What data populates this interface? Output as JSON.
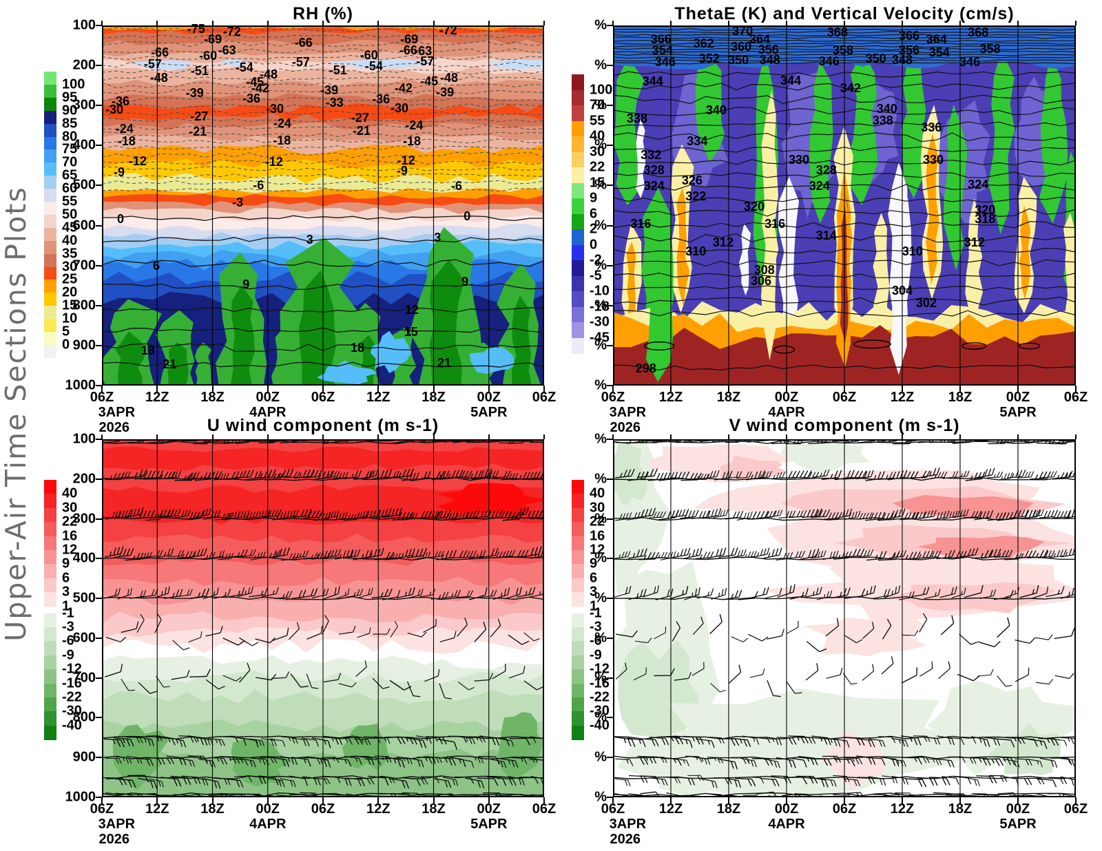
{
  "page": {
    "side_title": "Upper-Air Time Sections Plots"
  },
  "chart_data": [
    {
      "id": "rh",
      "type": "filled_contour_time_height_section",
      "title": "RH (%)",
      "x_tick_labels": [
        "06Z",
        "12Z",
        "18Z",
        "00Z",
        "06Z",
        "12Z",
        "18Z",
        "00Z",
        "06Z"
      ],
      "x_date_labels": [
        {
          "tick_index": 0,
          "lines": [
            "3APR",
            "2026"
          ]
        },
        {
          "tick_index": 3,
          "lines": [
            "4APR"
          ]
        },
        {
          "tick_index": 7,
          "lines": [
            "5APR"
          ]
        }
      ],
      "y_tick_labels": [
        "100",
        "200",
        "300",
        "400",
        "500",
        "600",
        "700",
        "800",
        "900",
        "1000"
      ],
      "colorbar": {
        "labels": [
          "100",
          "95",
          "90",
          "85",
          "80",
          "75",
          "70",
          "65",
          "60",
          "55",
          "50",
          "45",
          "40",
          "35",
          "30",
          "25",
          "20",
          "15",
          "10",
          "5",
          "0"
        ],
        "colors": [
          "#73E673",
          "#3CBE3C",
          "#0A870A",
          "#16207D",
          "#2050C3",
          "#2878E8",
          "#41A0F0",
          "#55BEFA",
          "#A5CDF2",
          "#D7DCF0",
          "#FBEBE9",
          "#F5D5CB",
          "#ECB49E",
          "#E09378",
          "#D47355",
          "#F74B14",
          "#FFA000",
          "#FFC800",
          "#EBEB96",
          "#FFE94C",
          "#FAFAC3",
          "#F2F2F2"
        ]
      },
      "contour_labels": [
        [
          "-75",
          21.3,
          1.0
        ],
        [
          "-72",
          29.4,
          1.7
        ],
        [
          "-72",
          78.3,
          1.4
        ],
        [
          "-69",
          25.1,
          3.9
        ],
        [
          "-69",
          69.5,
          3.9
        ],
        [
          "-66",
          13.1,
          7.5
        ],
        [
          "-66",
          45.6,
          4.8
        ],
        [
          "-66",
          69.3,
          6.8
        ],
        [
          "-63",
          28.3,
          6.9
        ],
        [
          "-63",
          72.6,
          7.1
        ],
        [
          "-60",
          24.0,
          8.5
        ],
        [
          "-60",
          60.4,
          8.3
        ],
        [
          "-57",
          11.5,
          10.8
        ],
        [
          "-57",
          45.0,
          10.2
        ],
        [
          "-57",
          73.1,
          10.0
        ],
        [
          "-54",
          32.2,
          11.6
        ],
        [
          "-54",
          61.5,
          11.2
        ],
        [
          "-51",
          22.1,
          12.7
        ],
        [
          "-51",
          53.4,
          12.5
        ],
        [
          "-48",
          12.9,
          14.5
        ],
        [
          "-48",
          37.7,
          13.5
        ],
        [
          "-48",
          78.5,
          14.5
        ],
        [
          "-45",
          34.6,
          15.6
        ],
        [
          "-45",
          74.0,
          15.4
        ],
        [
          "-42",
          35.8,
          17.4
        ],
        [
          "-42",
          68.2,
          17.4
        ],
        [
          "-39",
          21.0,
          18.7
        ],
        [
          "-39",
          51.4,
          18.0
        ],
        [
          "-39",
          77.6,
          18.5
        ],
        [
          "-36",
          4.2,
          21.0
        ],
        [
          "-36",
          33.8,
          20.3
        ],
        [
          "-36",
          63.1,
          20.5
        ],
        [
          "-33",
          52.6,
          21.4
        ],
        [
          "-30",
          2.8,
          23.4
        ],
        [
          "-30",
          39.1,
          23.2
        ],
        [
          "-30",
          67.3,
          23.0
        ],
        [
          "-27",
          22.0,
          25.3
        ],
        [
          "-27",
          58.4,
          25.7
        ],
        [
          "-24",
          5.1,
          28.6
        ],
        [
          "-24",
          40.8,
          27.2
        ],
        [
          "-24",
          70.6,
          27.8
        ],
        [
          "-21",
          21.7,
          29.5
        ],
        [
          "-21",
          58.7,
          29.3
        ],
        [
          "-18",
          5.6,
          32.2
        ],
        [
          "-18",
          40.7,
          31.9
        ],
        [
          "-18",
          70.1,
          32.2
        ],
        [
          "-12",
          8.1,
          37.6
        ],
        [
          "-12",
          38.9,
          37.8
        ],
        [
          "-12",
          68.8,
          37.5
        ],
        [
          "-9",
          3.9,
          40.7
        ],
        [
          "-9",
          67.9,
          40.3
        ],
        [
          "-6",
          35.4,
          44.4
        ],
        [
          "-6",
          80.2,
          44.6
        ],
        [
          "-3",
          30.7,
          49.2
        ],
        [
          "0",
          4.2,
          53.7
        ],
        [
          "0",
          82.6,
          52.9
        ],
        [
          "3",
          47.0,
          59.5
        ],
        [
          "3",
          75.9,
          58.9
        ],
        [
          "6",
          12.3,
          66.8
        ],
        [
          "9",
          32.6,
          71.8
        ],
        [
          "9",
          82.1,
          71.2
        ],
        [
          "12",
          70.1,
          79.0
        ],
        [
          "15",
          69.9,
          85.1
        ],
        [
          "18",
          10.4,
          90.3
        ],
        [
          "18",
          57.8,
          89.4
        ],
        [
          "21",
          15.3,
          94.0
        ],
        [
          "21",
          77.4,
          93.6
        ]
      ]
    },
    {
      "id": "thetae",
      "type": "filled_contour_time_height_section",
      "title": "ThetaE (K) and Vertical Velocity (cm/s)",
      "x_tick_labels": [
        "06Z",
        "12Z",
        "18Z",
        "00Z",
        "06Z",
        "12Z",
        "18Z",
        "00Z",
        "06Z"
      ],
      "x_date_labels": [
        {
          "tick_index": 0,
          "lines": [
            "3APR",
            "2026"
          ]
        },
        {
          "tick_index": 3,
          "lines": [
            "4APR"
          ]
        },
        {
          "tick_index": 7,
          "lines": [
            "5APR"
          ]
        }
      ],
      "y_tick_labels": [
        "%",
        "%",
        "%",
        "%",
        "%",
        "%",
        "%",
        "%",
        "%",
        "%"
      ],
      "colorbar": {
        "labels": [
          "100",
          "70",
          "55",
          "40",
          "30",
          "22",
          "15",
          "9",
          "6",
          "2",
          "0",
          "-2",
          "-5",
          "-10",
          "-18",
          "-30",
          "-45"
        ],
        "colors": [
          "#8C1A1A",
          "#A52D2D",
          "#C04040",
          "#FF9E00",
          "#FFB432",
          "#F8D060",
          "#FAF0A5",
          "#7DE87D",
          "#3CD23C",
          "#14A614",
          "#1E64D2",
          "#2830F0",
          "#231999",
          "#3C32AD",
          "#554BC3",
          "#7A70D7",
          "#9C93E3",
          "#ECECF8"
        ]
      },
      "contour_labels": [
        [
          "366",
          10.4,
          3.8
        ],
        [
          "370",
          28.0,
          1.5
        ],
        [
          "364",
          31.7,
          3.8
        ],
        [
          "368",
          48.5,
          2.0
        ],
        [
          "366",
          64.0,
          2.9
        ],
        [
          "364",
          69.9,
          3.8
        ],
        [
          "368",
          78.9,
          2.0
        ],
        [
          "354",
          10.7,
          6.9
        ],
        [
          "362",
          19.6,
          5.0
        ],
        [
          "360",
          27.7,
          5.9
        ],
        [
          "356",
          33.6,
          6.7
        ],
        [
          "358",
          49.7,
          6.9
        ],
        [
          "356",
          64.0,
          6.9
        ],
        [
          "354",
          70.5,
          7.5
        ],
        [
          "358",
          81.5,
          6.5
        ],
        [
          "346",
          11.3,
          10.1
        ],
        [
          "352",
          20.8,
          9.2
        ],
        [
          "350",
          27.1,
          9.6
        ],
        [
          "348",
          33.9,
          9.6
        ],
        [
          "346",
          46.7,
          9.9
        ],
        [
          "350",
          56.8,
          9.2
        ],
        [
          "348",
          62.5,
          9.6
        ],
        [
          "346",
          77.1,
          10.1
        ],
        [
          "344",
          8.6,
          15.5
        ],
        [
          "344",
          38.4,
          15.3
        ],
        [
          "342",
          51.3,
          17.4
        ],
        [
          "340",
          22.3,
          23.5
        ],
        [
          "340",
          59.2,
          23.1
        ],
        [
          "338",
          5.2,
          25.8
        ],
        [
          "338",
          58.3,
          26.4
        ],
        [
          "336",
          68.8,
          28.3
        ],
        [
          "334",
          18.2,
          32.1
        ],
        [
          "332",
          8.2,
          35.9
        ],
        [
          "330",
          40.2,
          37.3
        ],
        [
          "330",
          69.2,
          37.3
        ],
        [
          "328",
          8.9,
          40.2
        ],
        [
          "328",
          46.1,
          40.2
        ],
        [
          "326",
          17.1,
          43.0
        ],
        [
          "324",
          8.9,
          44.6
        ],
        [
          "324",
          44.6,
          44.6
        ],
        [
          "324",
          78.9,
          44.2
        ],
        [
          "322",
          17.9,
          47.4
        ],
        [
          "320",
          30.5,
          50.3
        ],
        [
          "320",
          80.4,
          51.2
        ],
        [
          "318",
          80.4,
          53.7
        ],
        [
          "316",
          6.0,
          55.1
        ],
        [
          "316",
          35.0,
          55.1
        ],
        [
          "314",
          46.1,
          58.3
        ],
        [
          "312",
          23.8,
          60.2
        ],
        [
          "312",
          78.1,
          60.2
        ],
        [
          "310",
          17.9,
          62.7
        ],
        [
          "310",
          64.7,
          62.7
        ],
        [
          "308",
          32.7,
          67.9
        ],
        [
          "306",
          32.0,
          70.9
        ],
        [
          "304",
          62.5,
          73.6
        ],
        [
          "302",
          67.7,
          77.1
        ],
        [
          "298",
          7.1,
          95.2
        ]
      ]
    },
    {
      "id": "u",
      "type": "filled_contour_time_height_section_with_wind_barbs",
      "title": "U wind component (m s-1)",
      "x_tick_labels": [
        "06Z",
        "12Z",
        "18Z",
        "00Z",
        "06Z",
        "12Z",
        "18Z",
        "00Z",
        "06Z"
      ],
      "x_date_labels": [
        {
          "tick_index": 0,
          "lines": [
            "3APR",
            "2026"
          ]
        },
        {
          "tick_index": 3,
          "lines": [
            "4APR"
          ]
        },
        {
          "tick_index": 7,
          "lines": [
            "5APR"
          ]
        }
      ],
      "y_tick_labels": [
        "100",
        "200",
        "300",
        "400",
        "500",
        "600",
        "700",
        "800",
        "900",
        "1000"
      ],
      "colorbar": {
        "labels": [
          "40",
          "30",
          "22",
          "16",
          "12",
          "9",
          "6",
          "3",
          "1",
          "-1",
          "-3",
          "-6",
          "-9",
          "-12",
          "-16",
          "-22",
          "-30",
          "-40"
        ],
        "colors": [
          "#FC0A0A",
          "#F52525",
          "#F44141",
          "#F55C5C",
          "#F67878",
          "#F89393",
          "#FAAFAF",
          "#FBC9C9",
          "#FDE2E2",
          "#E7F1E3",
          "#D4E8CF",
          "#BFDDB9",
          "#A8D2A1",
          "#8DC486",
          "#6FB568",
          "#50A54A",
          "#2F9230",
          "#0F8014"
        ]
      },
      "contour_labels": []
    },
    {
      "id": "v",
      "type": "filled_contour_time_height_section_with_wind_barbs",
      "title": "V wind component (m s-1)",
      "x_tick_labels": [
        "06Z",
        "12Z",
        "18Z",
        "00Z",
        "06Z",
        "12Z",
        "18Z",
        "00Z",
        "06Z"
      ],
      "x_date_labels": [
        {
          "tick_index": 0,
          "lines": [
            "3APR",
            "2026"
          ]
        },
        {
          "tick_index": 3,
          "lines": [
            "4APR"
          ]
        },
        {
          "tick_index": 7,
          "lines": [
            "5APR"
          ]
        }
      ],
      "y_tick_labels": [
        "%",
        "%",
        "%",
        "%",
        "%",
        "%",
        "%",
        "%",
        "%",
        "%"
      ],
      "colorbar": {
        "labels": [
          "40",
          "30",
          "22",
          "16",
          "12",
          "9",
          "6",
          "3",
          "1",
          "-1",
          "-3",
          "-6",
          "-9",
          "-12",
          "-16",
          "-22",
          "-30",
          "-40"
        ],
        "colors": [
          "#FC0A0A",
          "#F52525",
          "#F44141",
          "#F55C5C",
          "#F67878",
          "#F89393",
          "#FAAFAF",
          "#FBC9C9",
          "#FDE2E2",
          "#E7F1E3",
          "#D4E8CF",
          "#BFDDB9",
          "#A8D2A1",
          "#8DC486",
          "#6FB568",
          "#50A54A",
          "#2F9230",
          "#0F8014"
        ]
      },
      "contour_labels": []
    }
  ]
}
